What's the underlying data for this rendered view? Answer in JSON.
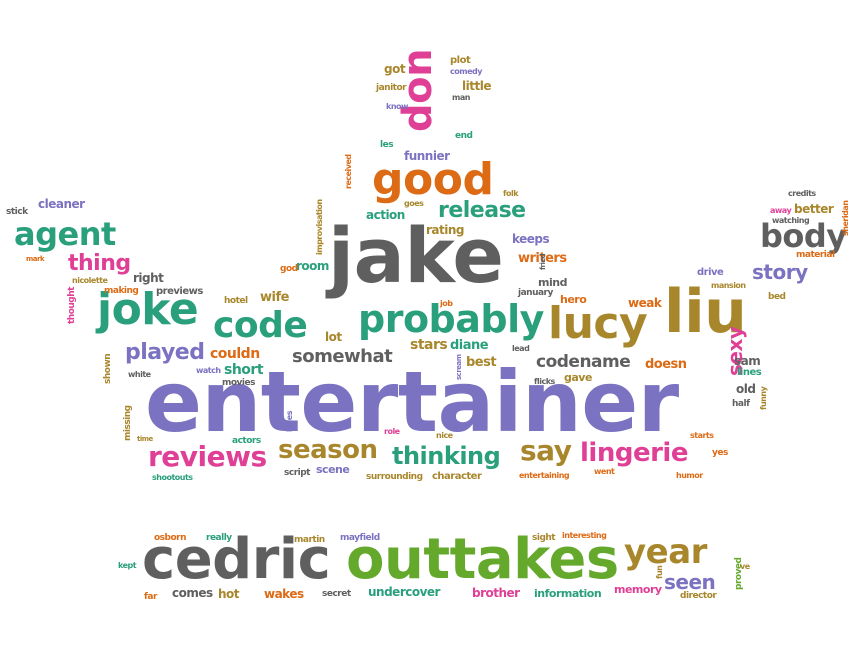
{
  "colors": {
    "gray": "#5f5f5f",
    "purple": "#7b72c1",
    "green": "#2a9f7c",
    "orange": "#dd6a14",
    "pink": "#e03f96",
    "olive": "#a8872c",
    "lime": "#64a82c"
  },
  "words": [
    "entertainer",
    "jake",
    "cedric",
    "outtakes",
    "liu",
    "lucy",
    "joke",
    "code",
    "probably",
    "good",
    "don",
    "agent",
    "body",
    "year",
    "reviews",
    "season",
    "thinking",
    "say",
    "lingerie",
    "played",
    "release",
    "thing",
    "story",
    "somewhat",
    "codename",
    "seen",
    "sexy",
    "couldn",
    "short",
    "stars",
    "diane",
    "best",
    "doesn",
    "weak",
    "hero",
    "writers",
    "keeps",
    "action",
    "rating",
    "funnier",
    "little",
    "got",
    "plot",
    "comedy",
    "janitor",
    "man",
    "know",
    "end",
    "les",
    "folk",
    "goes",
    "received",
    "wife",
    "room",
    "god",
    "improvisation",
    "lot",
    "job",
    "mind",
    "fried",
    "january",
    "mark",
    "cleaner",
    "stick",
    "nicolette",
    "making",
    "previews",
    "right",
    "hotel",
    "thought",
    "shown",
    "white",
    "watch",
    "movies",
    "missing",
    "time",
    "shootouts",
    "kyles",
    "actors",
    "role",
    "nice",
    "script",
    "scene",
    "surrounding",
    "character",
    "entertaining",
    "went",
    "funny",
    "starts",
    "half",
    "yes",
    "humor",
    "old",
    "sam",
    "lines",
    "bed",
    "drive",
    "mansion",
    "material",
    "credits",
    "away",
    "watching",
    "better",
    "sheridan",
    "scream",
    "lead",
    "flicks",
    "gave",
    "osborn",
    "really",
    "martin",
    "mayfield",
    "sight",
    "interesting",
    "kept",
    "far",
    "comes",
    "hot",
    "wakes",
    "secret",
    "undercover",
    "brother",
    "information",
    "memory",
    "fun",
    "director",
    "proved",
    "ve"
  ]
}
